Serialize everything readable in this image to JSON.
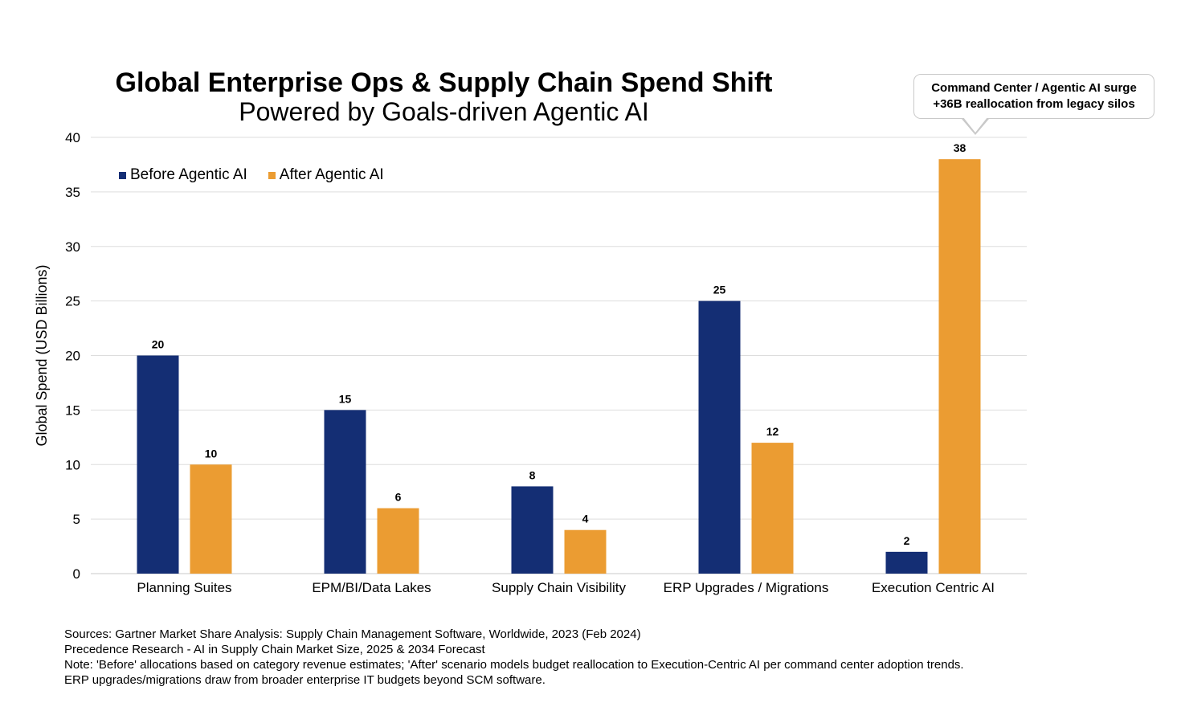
{
  "chart_data": {
    "type": "bar",
    "title": "Global Enterprise Ops & Supply Chain Spend Shift",
    "subtitle": "Powered by Goals-driven Agentic AI",
    "ylabel": "Global Spend (USD Billions)",
    "xlabel": "",
    "ylim": [
      0,
      40
    ],
    "yticks": [
      0,
      5,
      10,
      15,
      20,
      25,
      30,
      35,
      40
    ],
    "grid": true,
    "legend_position": "top-left",
    "categories": [
      "Planning Suites",
      "EPM/BI/Data Lakes",
      "Supply Chain Visibility",
      "ERP Upgrades / Migrations",
      "Execution Centric AI"
    ],
    "series": [
      {
        "name": "Before Agentic AI",
        "color": "#142e74",
        "values": [
          20,
          15,
          8,
          25,
          2
        ]
      },
      {
        "name": "After Agentic AI",
        "color": "#eb9c32",
        "values": [
          10,
          6,
          4,
          12,
          38
        ]
      }
    ],
    "annotation": {
      "line1": "Command Center / Agentic AI surge",
      "line2": "+36B reallocation from legacy silos"
    }
  },
  "sources": [
    "Sources: Gartner Market Share Analysis: Supply Chain Management Software, Worldwide, 2023 (Feb 2024)",
    "Precedence Research - AI in Supply Chain Market Size, 2025 & 2034 Forecast",
    "Note: 'Before' allocations based on category revenue estimates; 'After' scenario models budget reallocation to Execution-Centric AI per command center adoption trends.",
    "ERP upgrades/migrations draw from broader enterprise IT budgets beyond SCM software."
  ]
}
